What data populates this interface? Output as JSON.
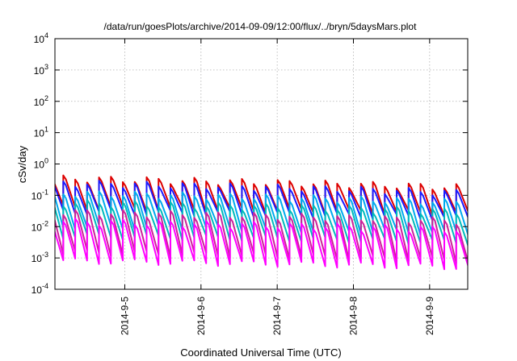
{
  "chart_data": {
    "type": "line",
    "title": "/data/run/goesPlots/archive/2014-09-09/12:00/flux/../bryn/5daysMars.plot",
    "xlabel": "Coordinated Universal Time (UTC)",
    "ylabel": "cSv/day",
    "y_scale": "log",
    "ylim": [
      0.0001,
      10000
    ],
    "x_range": [
      "2014-09-04 02:00",
      "2014-09-09 12:00"
    ],
    "grid": true,
    "y_ticks": [
      {
        "base": "10",
        "exp": "-4"
      },
      {
        "base": "10",
        "exp": "-3"
      },
      {
        "base": "10",
        "exp": "-2"
      },
      {
        "base": "10",
        "exp": "-1"
      },
      {
        "base": "10",
        "exp": "0"
      },
      {
        "base": "10",
        "exp": "1"
      },
      {
        "base": "10",
        "exp": "2"
      },
      {
        "base": "10",
        "exp": "3"
      },
      {
        "base": "10",
        "exp": "4"
      }
    ],
    "x_ticks": [
      "2014-9-5",
      "2014-9-6",
      "2014-9-7",
      "2014-9-8",
      "2014-9-9"
    ],
    "x_tick_dates": [
      "2014-09-05",
      "2014-09-06",
      "2014-09-07",
      "2014-09-08",
      "2014-09-09"
    ],
    "sawtooth_period_hours": 3.75,
    "series": [
      {
        "color": "#dd0000",
        "peak_start": 0.35,
        "peak_end": 0.18,
        "trough_start": 0.04,
        "trough_end": 0.025
      },
      {
        "color": "#1a1aff",
        "peak_start": 0.25,
        "peak_end": 0.12,
        "trough_start": 0.03,
        "trough_end": 0.018
      },
      {
        "color": "#00aaee",
        "peak_start": 0.12,
        "peak_end": 0.06,
        "trough_start": 0.01,
        "trough_end": 0.006
      },
      {
        "color": "#00bbbb",
        "peak_start": 0.06,
        "peak_end": 0.03,
        "trough_start": 0.005,
        "trough_end": 0.003
      },
      {
        "color": "#cc2299",
        "peak_start": 0.03,
        "peak_end": 0.015,
        "trough_start": 0.0015,
        "trough_end": 0.0008
      },
      {
        "color": "#ff00ff",
        "peak_start": 0.015,
        "peak_end": 0.008,
        "trough_start": 0.0008,
        "trough_end": 0.0005
      }
    ]
  }
}
